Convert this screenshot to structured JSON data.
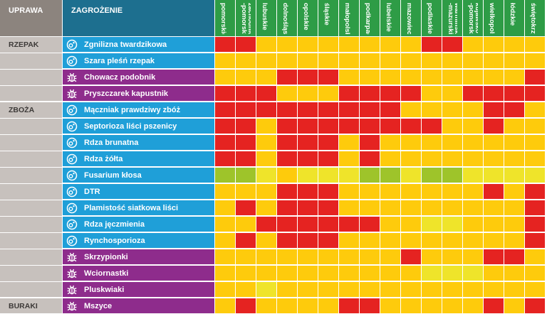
{
  "headers": {
    "crop": "UPRAWA",
    "threat": "ZAGROŻENIE"
  },
  "risk_colors": {
    "0": "#9ec42a",
    "1": "#efe42a",
    "2": "#fecb0c",
    "3": "#e52321"
  },
  "threat_type_colors": {
    "disease": "#1f9fd8",
    "pest": "#8e2c8c"
  },
  "regions": [
    "pomorskie",
    "zachodnio\n-pomorskie",
    "lubuskie",
    "dolnośląskie",
    "opolskie",
    "śląskie",
    "małopolskie",
    "podkarpackie",
    "lubelskie",
    "mazowieckie",
    "podlaskie",
    "warmińsko\n-mazurskie",
    "kujawsko\n-pomorskie",
    "wielkopolskie",
    "łódzkie",
    "świętokrzyskie"
  ],
  "crops": [
    {
      "name": "RZEPAK",
      "rows": 4
    },
    {
      "name": "ZBOŻA",
      "rows": 12
    },
    {
      "name": "BURAKI",
      "rows": 1
    }
  ],
  "threats": [
    {
      "name": "Zgnilizna twardzikowa",
      "type": "disease",
      "icon": "pathogen-icon"
    },
    {
      "name": "Szara pleśń rzepak",
      "type": "disease",
      "icon": "pathogen-icon"
    },
    {
      "name": "Chowacz podobnik",
      "type": "pest",
      "icon": "bug-icon"
    },
    {
      "name": "Pryszczarek kapustnik",
      "type": "pest",
      "icon": "bug-icon"
    },
    {
      "name": "Mączniak prawdziwy zbóż",
      "type": "disease",
      "icon": "pathogen-icon"
    },
    {
      "name": "Septorioza liści pszenicy",
      "type": "disease",
      "icon": "pathogen-icon"
    },
    {
      "name": "Rdza brunatna",
      "type": "disease",
      "icon": "pathogen-icon"
    },
    {
      "name": "Rdza żółta",
      "type": "disease",
      "icon": "pathogen-icon"
    },
    {
      "name": "Fusarium kłosa",
      "type": "disease",
      "icon": "pathogen-icon"
    },
    {
      "name": "DTR",
      "type": "disease",
      "icon": "pathogen-icon"
    },
    {
      "name": "Plamistość siatkowa liści",
      "type": "disease",
      "icon": "pathogen-icon"
    },
    {
      "name": "Rdza jęczmienia",
      "type": "disease",
      "icon": "pathogen-icon"
    },
    {
      "name": "Rynchosporioza",
      "type": "disease",
      "icon": "pathogen-icon"
    },
    {
      "name": "Skrzypionki",
      "type": "pest",
      "icon": "bug-icon"
    },
    {
      "name": "Wciornastki",
      "type": "pest",
      "icon": "bug-icon"
    },
    {
      "name": "Pluskwiaki",
      "type": "pest",
      "icon": "bug-icon"
    },
    {
      "name": "Mszyce",
      "type": "pest",
      "icon": "bug-icon"
    }
  ],
  "chart_data": {
    "type": "heatmap",
    "x": [
      "pomorskie",
      "zachodnio-pomorskie",
      "lubuskie",
      "dolnośląskie",
      "opolskie",
      "śląskie",
      "małopolskie",
      "podkarpackie",
      "lubelskie",
      "mazowieckie",
      "podlaskie",
      "warmińsko-mazurskie",
      "kujawsko-pomorskie",
      "wielkopolskie",
      "łódzkie",
      "świętokrzyskie"
    ],
    "y": [
      "Zgnilizna twardzikowa",
      "Szara pleśń rzepak",
      "Chowacz podobnik",
      "Pryszczarek kapustnik",
      "Mączniak prawdziwy zbóż",
      "Septorioza liści pszenicy",
      "Rdza brunatna",
      "Rdza żółta",
      "Fusarium kłosa",
      "DTR",
      "Plamistość siatkowa liści",
      "Rdza jęczmienia",
      "Rynchosporioza",
      "Skrzypionki",
      "Wciornastki",
      "Pluskwiaki",
      "Mszyce"
    ],
    "values": [
      [
        3,
        3,
        2,
        2,
        2,
        2,
        2,
        2,
        2,
        2,
        3,
        3,
        2,
        2,
        2,
        2
      ],
      [
        2,
        2,
        2,
        2,
        2,
        2,
        2,
        2,
        2,
        2,
        2,
        2,
        2,
        2,
        2,
        2
      ],
      [
        2,
        2,
        2,
        3,
        3,
        3,
        2,
        2,
        2,
        2,
        2,
        2,
        2,
        2,
        2,
        3
      ],
      [
        3,
        3,
        3,
        2,
        2,
        2,
        3,
        3,
        3,
        3,
        2,
        2,
        3,
        3,
        3,
        3
      ],
      [
        3,
        3,
        3,
        3,
        3,
        3,
        3,
        3,
        3,
        2,
        2,
        2,
        2,
        3,
        3,
        2
      ],
      [
        3,
        3,
        2,
        3,
        3,
        3,
        3,
        3,
        3,
        3,
        3,
        2,
        2,
        3,
        2,
        2
      ],
      [
        3,
        3,
        2,
        3,
        3,
        3,
        2,
        3,
        2,
        2,
        2,
        2,
        2,
        2,
        2,
        2
      ],
      [
        3,
        3,
        2,
        3,
        3,
        3,
        2,
        3,
        2,
        2,
        2,
        2,
        2,
        2,
        2,
        2
      ],
      [
        0,
        0,
        1,
        2,
        1,
        1,
        1,
        0,
        0,
        1,
        0,
        0,
        1,
        1,
        1,
        1
      ],
      [
        2,
        2,
        2,
        3,
        3,
        3,
        2,
        2,
        2,
        2,
        2,
        2,
        2,
        3,
        2,
        3
      ],
      [
        2,
        3,
        2,
        3,
        3,
        3,
        2,
        2,
        2,
        2,
        2,
        2,
        2,
        2,
        2,
        3
      ],
      [
        2,
        2,
        3,
        3,
        3,
        3,
        3,
        3,
        2,
        2,
        1,
        1,
        2,
        2,
        2,
        3
      ],
      [
        2,
        3,
        2,
        3,
        3,
        3,
        2,
        2,
        2,
        2,
        2,
        2,
        2,
        2,
        2,
        3
      ],
      [
        2,
        2,
        2,
        2,
        2,
        2,
        2,
        2,
        2,
        3,
        2,
        2,
        2,
        3,
        3,
        2
      ],
      [
        2,
        2,
        2,
        2,
        2,
        2,
        2,
        2,
        2,
        2,
        1,
        1,
        1,
        2,
        2,
        2
      ],
      [
        2,
        2,
        1,
        2,
        2,
        2,
        2,
        2,
        2,
        2,
        2,
        2,
        2,
        2,
        2,
        2
      ],
      [
        2,
        3,
        2,
        2,
        2,
        2,
        3,
        3,
        2,
        2,
        2,
        2,
        2,
        3,
        2,
        3
      ]
    ],
    "scale": [
      "niskie",
      "umiarkowane",
      "podwyższone",
      "wysokie"
    ]
  }
}
